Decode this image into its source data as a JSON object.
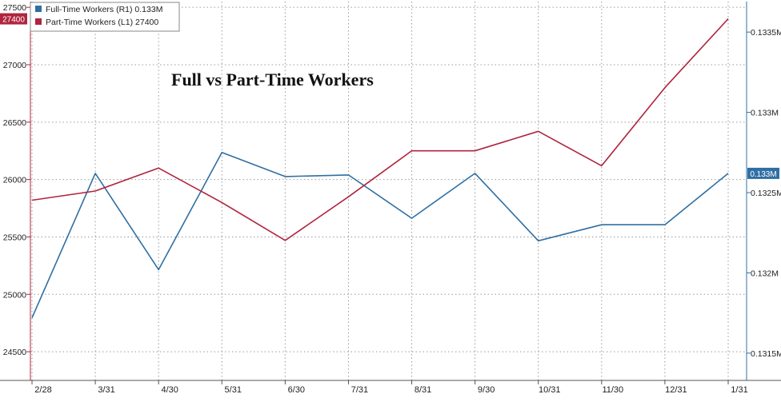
{
  "chart_data": {
    "type": "line",
    "title": "Full vs Part-Time Workers",
    "categories": [
      "2/28",
      "3/31",
      "4/30",
      "5/31",
      "6/30",
      "7/31",
      "8/31",
      "9/30",
      "10/31",
      "11/30",
      "12/31",
      "1/31"
    ],
    "series": [
      {
        "name": "Full-Time Workers (R1)",
        "legend_label": "Full-Time Workers (R1) 0.133M",
        "axis": "right",
        "color": "#2f6fa3",
        "values": [
          0.13172,
          0.13262,
          0.13202,
          0.13275,
          0.1326,
          0.13261,
          0.13234,
          0.13262,
          0.1322,
          0.1323,
          0.1323,
          0.13262
        ],
        "last_value_label": "0.133M"
      },
      {
        "name": "Part-Time Workers (L1)",
        "legend_label": "Part-Time Workers (L1) 27400",
        "axis": "left",
        "color": "#b0243e",
        "values": [
          25820,
          25900,
          26100,
          25800,
          25470,
          25850,
          26250,
          26250,
          26420,
          26120,
          26800,
          27400
        ],
        "last_value_label": "27400"
      }
    ],
    "left_axis": {
      "ylim": [
        24250,
        27550
      ],
      "ticks": [
        24500,
        25000,
        25500,
        26000,
        26500,
        27000,
        27500
      ],
      "tick_labels": [
        "24500",
        "25000",
        "25500",
        "26000",
        "26500",
        "27000",
        "27500"
      ]
    },
    "right_axis": {
      "ylim": [
        0.13133,
        0.13369
      ],
      "ticks": [
        0.1315,
        0.132,
        0.1325,
        0.133,
        0.1335
      ],
      "tick_labels": [
        "0.1315M",
        "0.132M",
        "0.1325M",
        "0.133M",
        "0.1335M"
      ]
    },
    "grid": true,
    "legend_position": "top-left"
  }
}
